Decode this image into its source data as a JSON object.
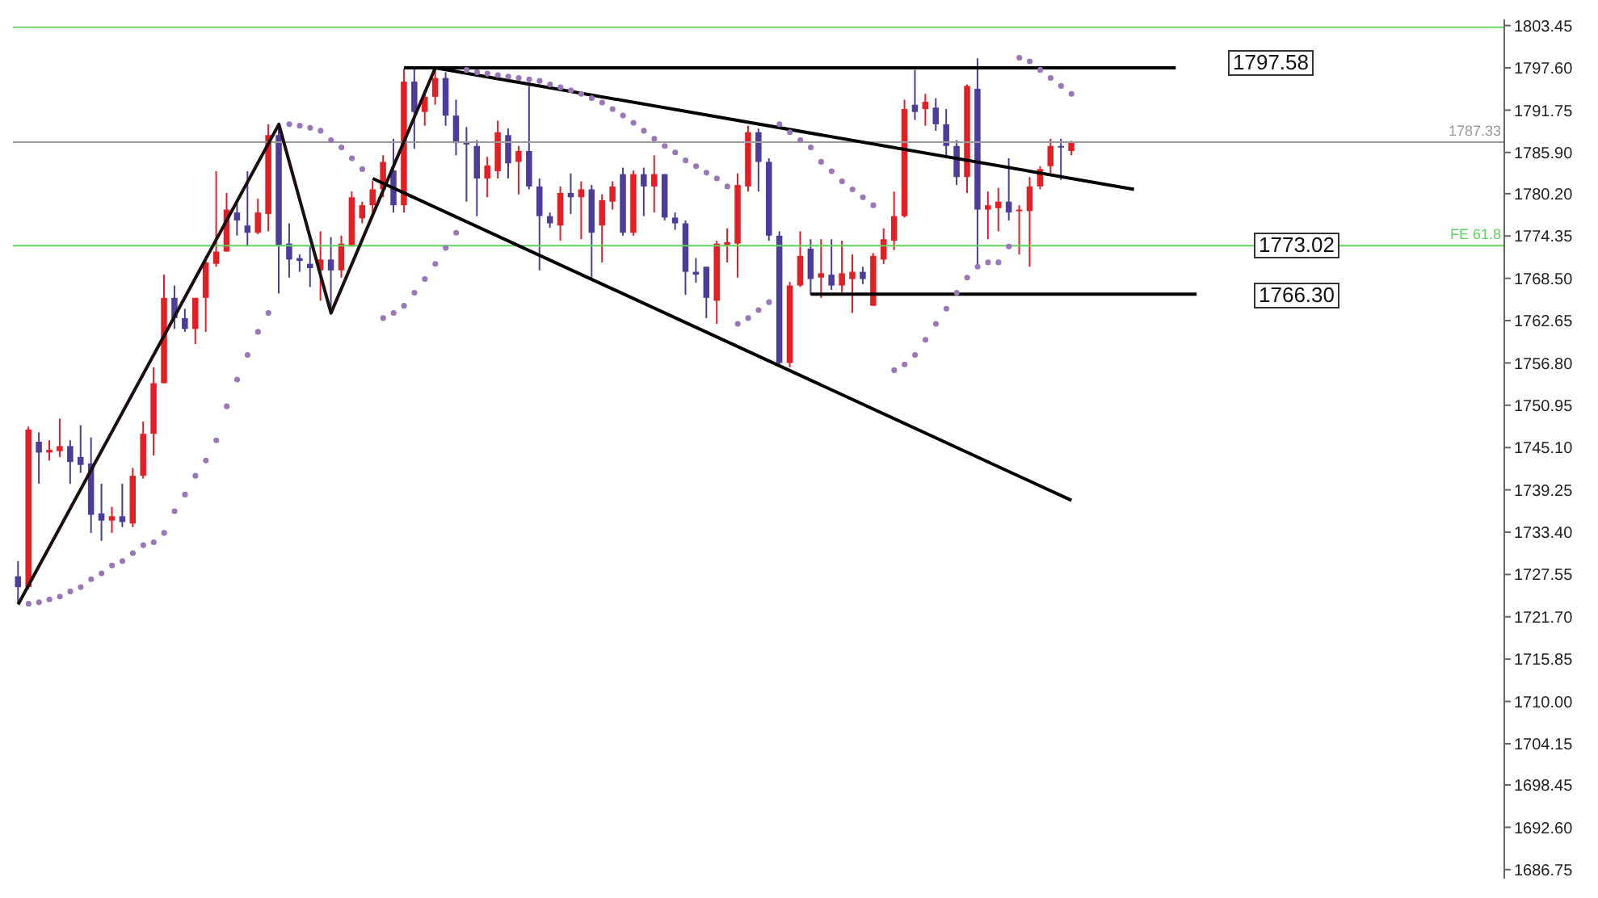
{
  "chart_data": {
    "type": "candlestick",
    "categories": [
      null,
      null,
      null,
      null,
      null,
      null,
      null,
      null,
      null,
      null,
      null,
      null,
      null,
      null,
      null,
      null,
      null,
      null,
      null,
      null,
      null,
      null,
      null,
      null,
      null,
      null,
      null,
      null,
      null,
      null,
      null,
      null,
      null,
      null,
      null,
      null,
      null,
      null,
      null,
      null,
      null,
      null,
      null,
      null,
      null,
      null,
      null,
      null,
      null,
      null,
      null,
      null,
      null,
      null,
      null,
      null,
      null,
      null,
      null,
      null,
      null,
      null,
      null,
      null,
      null,
      null,
      null,
      null,
      null,
      null,
      null,
      null,
      null,
      null,
      null,
      null,
      null,
      null,
      null,
      null,
      null,
      null,
      null,
      null,
      null,
      null,
      null,
      null,
      null,
      null,
      null,
      null,
      null,
      null,
      null,
      null,
      null,
      null,
      null,
      null,
      null,
      null,
      null,
      null,
      null,
      null,
      null,
      null,
      null,
      null,
      null,
      null,
      null,
      null,
      null,
      null,
      null,
      null,
      null,
      null,
      null,
      null,
      null,
      null,
      null,
      null,
      null,
      null,
      null,
      null,
      null,
      null,
      null,
      null,
      null,
      null,
      null,
      null,
      null,
      null,
      null,
      null,
      null
    ],
    "ohlc": [
      [
        1727.3,
        1729.4,
        1723.6,
        1725.8
      ],
      [
        1725.8,
        1748.0,
        1725.5,
        1747.6
      ],
      [
        1745.9,
        1747.2,
        1740.1,
        1744.4
      ],
      [
        1744.4,
        1746.1,
        1743.3,
        1744.8
      ],
      [
        1744.6,
        1749.1,
        1743.8,
        1745.3
      ],
      [
        1745.3,
        1746.1,
        1740.1,
        1743.1
      ],
      [
        1743.8,
        1748.2,
        1741.6,
        1742.7
      ],
      [
        1742.9,
        1746.5,
        1733.3,
        1735.8
      ],
      [
        1736.0,
        1740.1,
        1732.2,
        1735.0
      ],
      [
        1735.0,
        1736.9,
        1733.3,
        1735.6
      ],
      [
        1735.6,
        1740.1,
        1734.1,
        1734.8
      ],
      [
        1734.6,
        1742.3,
        1734.1,
        1741.2
      ],
      [
        1741.2,
        1748.7,
        1740.8,
        1747.0
      ],
      [
        1747.0,
        1756.2,
        1744.0,
        1754.0
      ],
      [
        1754.0,
        1769.0,
        1754.0,
        1765.8
      ],
      [
        1765.8,
        1767.5,
        1761.5,
        1763.0
      ],
      [
        1763.0,
        1764.3,
        1761.1,
        1761.5
      ],
      [
        1761.5,
        1765.8,
        1759.4,
        1765.8
      ],
      [
        1765.8,
        1771.6,
        1761.1,
        1770.7
      ],
      [
        1770.5,
        1783.3,
        1770.1,
        1772.2
      ],
      [
        1772.2,
        1780.3,
        1772.2,
        1778.0
      ],
      [
        1777.6,
        1779.1,
        1774.4,
        1776.5
      ],
      [
        1775.8,
        1783.3,
        1772.9,
        1774.8
      ],
      [
        1774.8,
        1779.5,
        1774.6,
        1777.6
      ],
      [
        1777.4,
        1789.8,
        1775.0,
        1788.3
      ],
      [
        1788.3,
        1789.8,
        1766.4,
        1773.1
      ],
      [
        1773.3,
        1776.1,
        1768.6,
        1771.1
      ],
      [
        1771.3,
        1771.8,
        1769.4,
        1770.9
      ],
      [
        1770.5,
        1772.9,
        1767.3,
        1769.9
      ],
      [
        1769.6,
        1775.0,
        1765.4,
        1771.1
      ],
      [
        1771.1,
        1774.2,
        1763.7,
        1769.6
      ],
      [
        1769.6,
        1774.4,
        1768.6,
        1773.3
      ],
      [
        1772.9,
        1780.5,
        1772.9,
        1779.7
      ],
      [
        1776.8,
        1779.1,
        1776.1,
        1778.6
      ],
      [
        1778.6,
        1782.0,
        1777.6,
        1780.8
      ],
      [
        1780.8,
        1785.5,
        1779.7,
        1784.6
      ],
      [
        1783.4,
        1787.8,
        1777.6,
        1778.6
      ],
      [
        1778.6,
        1797.5,
        1777.6,
        1795.7
      ],
      [
        1795.7,
        1797.5,
        1786.4,
        1791.5
      ],
      [
        1791.5,
        1794.5,
        1789.6,
        1793.6
      ],
      [
        1793.6,
        1797.6,
        1792.5,
        1796.2
      ],
      [
        1796.2,
        1797.0,
        1789.6,
        1791.0
      ],
      [
        1791.0,
        1793.2,
        1785.5,
        1787.2
      ],
      [
        1787.4,
        1789.4,
        1779.1,
        1787.0
      ],
      [
        1786.8,
        1787.6,
        1777.1,
        1782.3
      ],
      [
        1782.3,
        1785.3,
        1779.7,
        1784.1
      ],
      [
        1783.3,
        1790.3,
        1782.3,
        1788.7
      ],
      [
        1788.3,
        1789.2,
        1782.3,
        1784.4
      ],
      [
        1784.6,
        1786.8,
        1780.1,
        1786.1
      ],
      [
        1786.1,
        1795.1,
        1780.8,
        1781.2
      ],
      [
        1781.2,
        1782.3,
        1769.6,
        1777.1
      ],
      [
        1777.1,
        1777.6,
        1775.5,
        1776.1
      ],
      [
        1775.8,
        1781.2,
        1773.7,
        1780.3
      ],
      [
        1780.3,
        1783.0,
        1777.4,
        1779.7
      ],
      [
        1779.7,
        1781.9,
        1773.9,
        1780.8
      ],
      [
        1780.8,
        1781.4,
        1768.6,
        1774.8
      ],
      [
        1775.8,
        1780.1,
        1770.7,
        1779.3
      ],
      [
        1779.1,
        1781.9,
        1778.0,
        1781.2
      ],
      [
        1782.9,
        1783.8,
        1774.4,
        1774.8
      ],
      [
        1774.8,
        1783.4,
        1774.4,
        1782.9
      ],
      [
        1782.9,
        1783.8,
        1777.1,
        1781.2
      ],
      [
        1781.2,
        1785.5,
        1777.6,
        1782.9
      ],
      [
        1782.9,
        1782.9,
        1776.5,
        1776.9
      ],
      [
        1776.9,
        1777.6,
        1775.2,
        1776.1
      ],
      [
        1776.1,
        1776.5,
        1766.2,
        1769.4
      ],
      [
        1769.4,
        1771.3,
        1767.9,
        1769.0
      ],
      [
        1770.1,
        1770.1,
        1763.0,
        1765.8
      ],
      [
        1765.4,
        1773.7,
        1762.2,
        1773.3
      ],
      [
        1773.1,
        1775.4,
        1770.7,
        1773.5
      ],
      [
        1773.3,
        1783.0,
        1768.6,
        1781.4
      ],
      [
        1781.2,
        1789.6,
        1780.5,
        1788.7
      ],
      [
        1788.7,
        1789.2,
        1780.5,
        1784.6
      ],
      [
        1784.6,
        1785.1,
        1773.7,
        1774.4
      ],
      [
        1774.4,
        1775.0,
        1756.3,
        1756.8
      ],
      [
        1756.8,
        1768.0,
        1756.2,
        1767.5
      ],
      [
        1767.5,
        1775.0,
        1767.3,
        1771.6
      ],
      [
        1772.6,
        1773.9,
        1766.2,
        1768.4
      ],
      [
        1768.6,
        1773.9,
        1765.8,
        1769.2
      ],
      [
        1769.0,
        1773.9,
        1766.9,
        1767.5
      ],
      [
        1767.5,
        1773.7,
        1766.6,
        1769.2
      ],
      [
        1768.4,
        1771.8,
        1763.7,
        1769.4
      ],
      [
        1769.4,
        1770.1,
        1767.7,
        1768.4
      ],
      [
        1764.7,
        1772.0,
        1764.7,
        1771.6
      ],
      [
        1771.1,
        1775.4,
        1770.5,
        1773.9
      ],
      [
        1773.7,
        1780.5,
        1772.4,
        1777.1
      ],
      [
        1777.1,
        1793.2,
        1776.9,
        1791.9
      ],
      [
        1792.5,
        1797.3,
        1790.4,
        1791.5
      ],
      [
        1791.9,
        1794.0,
        1789.6,
        1792.9
      ],
      [
        1792.1,
        1793.4,
        1788.9,
        1789.8
      ],
      [
        1789.8,
        1791.9,
        1785.1,
        1786.8
      ],
      [
        1786.8,
        1787.6,
        1781.4,
        1782.5
      ],
      [
        1782.5,
        1795.3,
        1780.3,
        1795.1
      ],
      [
        1794.7,
        1798.9,
        1770.1,
        1778.0
      ],
      [
        1778.0,
        1780.5,
        1773.9,
        1778.6
      ],
      [
        1778.2,
        1781.0,
        1775.0,
        1779.1
      ],
      [
        1779.1,
        1785.1,
        1776.5,
        1777.6
      ],
      [
        1777.8,
        1778.6,
        1771.8,
        1778.0
      ],
      [
        1777.8,
        1782.5,
        1770.1,
        1781.2
      ],
      [
        1781.2,
        1784.0,
        1780.8,
        1783.6
      ],
      [
        1784.0,
        1787.8,
        1783.0,
        1786.8
      ],
      [
        1786.8,
        1787.8,
        1782.1,
        1786.6
      ],
      [
        1786.1,
        1787.5,
        1785.5,
        1787.33
      ],
      null,
      null,
      null,
      null,
      null,
      null,
      null,
      null,
      null,
      null,
      null,
      null,
      null,
      null,
      null,
      null,
      null,
      null,
      null,
      null,
      null,
      null,
      null,
      null,
      null,
      null,
      null,
      null,
      null,
      null,
      null,
      null,
      null,
      null,
      null,
      null,
      null,
      null,
      null,
      null,
      null
    ],
    "colors": [
      "#4b3d99",
      "#e31e24",
      "#4b3d99",
      "#e31e24",
      "#e31e24",
      "#4b3d99",
      "#4b3d99",
      "#4b3d99",
      "#4b3d99",
      "#e31e24",
      "#4b3d99",
      "#e31e24",
      "#e31e24",
      "#e31e24",
      "#e31e24",
      "#4b3d99",
      "#4b3d99",
      "#e31e24",
      "#e31e24",
      "#e31e24",
      "#e31e24",
      "#4b3d99",
      "#4b3d99",
      "#e31e24",
      "#e31e24",
      "#4b3d99",
      "#4b3d99",
      "#4b3d99",
      "#4b3d99",
      "#e31e24",
      "#4b3d99",
      "#e31e24",
      "#e31e24",
      "#e31e24",
      "#e31e24",
      "#e31e24",
      "#4b3d99",
      "#e31e24",
      "#4b3d99",
      "#e31e24",
      "#e31e24",
      "#4b3d99",
      "#4b3d99",
      "#4b3d99",
      "#4b3d99",
      "#e31e24",
      "#e31e24",
      "#4b3d99",
      "#e31e24",
      "#4b3d99",
      "#4b3d99",
      "#4b3d99",
      "#e31e24",
      "#4b3d99",
      "#e31e24",
      "#4b3d99",
      "#e31e24",
      "#e31e24",
      "#4b3d99",
      "#e31e24",
      "#4b3d99",
      "#e31e24",
      "#4b3d99",
      "#4b3d99",
      "#4b3d99",
      "#4b3d99",
      "#4b3d99",
      "#e31e24",
      "#e31e24",
      "#e31e24",
      "#e31e24",
      "#4b3d99",
      "#4b3d99",
      "#4b3d99",
      "#e31e24",
      "#e31e24",
      "#4b3d99",
      "#e31e24",
      "#4b3d99",
      "#e31e24",
      "#e31e24",
      "#4b3d99",
      "#e31e24",
      "#e31e24",
      "#e31e24",
      "#e31e24",
      "#4b3d99",
      "#e31e24",
      "#4b3d99",
      "#4b3d99",
      "#4b3d99",
      "#e31e24",
      "#4b3d99",
      "#e31e24",
      "#e31e24",
      "#4b3d99",
      "#e31e24",
      "#e31e24",
      "#e31e24",
      "#e31e24",
      "#4b3d99",
      "#e31e24",
      null,
      null,
      null,
      null,
      null,
      null,
      null,
      null,
      null,
      null,
      null,
      null,
      null,
      null,
      null,
      null,
      null,
      null,
      null,
      null,
      null,
      null,
      null,
      null,
      null,
      null,
      null,
      null,
      null,
      null,
      null,
      null,
      null,
      null,
      null,
      null,
      null,
      null,
      null,
      null,
      null
    ],
    "series": [
      {
        "type": "line",
        "color": "#1a1010",
        "values": [
          1723.4,
          null,
          null,
          null,
          null,
          null,
          null,
          null,
          null,
          null,
          null,
          null,
          null,
          null,
          null,
          null,
          null,
          null,
          null,
          null,
          null,
          null,
          null,
          null,
          null,
          1789.8,
          null,
          null,
          null,
          null,
          1763.7,
          null,
          null,
          null,
          null,
          null,
          null,
          null,
          null,
          null,
          1797.6,
          null,
          null,
          null,
          null,
          null,
          null,
          null,
          null,
          null,
          null,
          null,
          null,
          null,
          null,
          null,
          null,
          null,
          null,
          null,
          null,
          null,
          null,
          null,
          null,
          null,
          null,
          null,
          null,
          null,
          null,
          null,
          null,
          null,
          null,
          null,
          null,
          null,
          null,
          null,
          null,
          null,
          null,
          null,
          null,
          null,
          null,
          null,
          null,
          null,
          null,
          null,
          null,
          null,
          null,
          null,
          null,
          null,
          null,
          null,
          null,
          null,
          null,
          null,
          null,
          null,
          null,
          null,
          null,
          null,
          null,
          null,
          null,
          null,
          null,
          null,
          null,
          null,
          null,
          null,
          null,
          null,
          null,
          null,
          null,
          null,
          null,
          null,
          null,
          null,
          null,
          null,
          null,
          null,
          null,
          null,
          null,
          null,
          null,
          null,
          null,
          null,
          null
        ]
      },
      {
        "type": "line",
        "color": "#000000",
        "values": [
          null,
          null,
          null,
          null,
          null,
          null,
          null,
          null,
          null,
          null,
          null,
          null,
          null,
          null,
          null,
          null,
          null,
          null,
          null,
          null,
          null,
          null,
          null,
          null,
          null,
          null,
          null,
          null,
          null,
          null,
          null,
          null,
          null,
          null,
          null,
          null,
          null,
          null,
          null,
          null,
          1797.6,
          null,
          null,
          null,
          null,
          null,
          null,
          null,
          null,
          null,
          null,
          null,
          null,
          null,
          null,
          null,
          null,
          null,
          null,
          null,
          null,
          null,
          null,
          null,
          null,
          null,
          null,
          null,
          null,
          null,
          null,
          null,
          null,
          null,
          null,
          null,
          null,
          null,
          null,
          null,
          null,
          null,
          null,
          null,
          null,
          null,
          null,
          null,
          null,
          null,
          null,
          null,
          null,
          null,
          null,
          null,
          null,
          null,
          null,
          null,
          null,
          null,
          null,
          null,
          null,
          null,
          null,
          1780.8,
          null,
          null,
          null,
          null,
          null,
          null,
          null,
          null,
          null,
          null,
          null,
          null,
          null,
          null,
          null,
          null,
          null,
          null,
          null,
          null,
          null,
          null,
          null,
          null,
          null,
          null,
          null,
          null,
          null,
          null,
          null,
          null,
          null,
          null,
          null
        ]
      },
      {
        "type": "line",
        "color": "#000000",
        "values": [
          null,
          null,
          null,
          null,
          null,
          null,
          null,
          null,
          null,
          null,
          null,
          null,
          null,
          null,
          null,
          null,
          null,
          null,
          null,
          null,
          null,
          null,
          null,
          null,
          null,
          null,
          null,
          null,
          null,
          null,
          null,
          null,
          null,
          null,
          1782.3,
          null,
          null,
          null,
          null,
          null,
          null,
          null,
          null,
          null,
          null,
          null,
          null,
          null,
          null,
          null,
          null,
          null,
          null,
          null,
          null,
          null,
          null,
          null,
          null,
          null,
          null,
          null,
          null,
          null,
          null,
          null,
          null,
          null,
          null,
          null,
          null,
          null,
          null,
          null,
          null,
          null,
          null,
          null,
          null,
          null,
          null,
          null,
          null,
          null,
          null,
          null,
          null,
          null,
          null,
          null,
          null,
          null,
          null,
          null,
          null,
          null,
          null,
          null,
          null,
          null,
          null,
          1737.8,
          null,
          null,
          null,
          null,
          null,
          null,
          null,
          null,
          null,
          null,
          null,
          null,
          null,
          null,
          null,
          null,
          null,
          null,
          null,
          null,
          null,
          null,
          null,
          null,
          null,
          null,
          null,
          null,
          null,
          null,
          null,
          null,
          null,
          null,
          null,
          null,
          null,
          null,
          null,
          null,
          null
        ]
      },
      {
        "type": "line",
        "color": "#000000",
        "values": [
          null,
          null,
          null,
          null,
          null,
          null,
          null,
          null,
          null,
          null,
          null,
          null,
          null,
          null,
          null,
          null,
          null,
          null,
          null,
          null,
          null,
          null,
          null,
          null,
          null,
          null,
          null,
          null,
          null,
          null,
          null,
          null,
          null,
          null,
          null,
          null,
          null,
          1797.6,
          null,
          null,
          null,
          null,
          null,
          null,
          null,
          null,
          null,
          null,
          null,
          null,
          null,
          null,
          null,
          null,
          null,
          null,
          null,
          null,
          null,
          null,
          null,
          null,
          null,
          null,
          null,
          null,
          null,
          null,
          null,
          null,
          null,
          null,
          null,
          null,
          null,
          null,
          null,
          null,
          null,
          null,
          null,
          null,
          null,
          null,
          null,
          null,
          null,
          null,
          null,
          null,
          null,
          null,
          null,
          null,
          null,
          null,
          null,
          null,
          null,
          null,
          null,
          null,
          null,
          null,
          null,
          null,
          null,
          null,
          null,
          null,
          null,
          1797.6,
          null,
          null,
          null,
          null,
          null,
          null,
          null,
          null,
          null,
          null,
          null,
          null,
          null,
          null,
          null,
          null,
          null,
          null,
          null,
          null,
          null,
          null,
          null,
          null,
          null,
          null,
          null,
          null,
          null,
          null,
          null
        ]
      },
      {
        "type": "line",
        "color": "#000000",
        "values": [
          null,
          null,
          null,
          null,
          null,
          null,
          null,
          null,
          null,
          null,
          null,
          null,
          null,
          null,
          null,
          null,
          null,
          null,
          null,
          null,
          null,
          null,
          null,
          null,
          null,
          null,
          null,
          null,
          null,
          null,
          null,
          null,
          null,
          null,
          null,
          null,
          null,
          null,
          null,
          null,
          null,
          null,
          null,
          null,
          null,
          null,
          null,
          null,
          null,
          null,
          null,
          null,
          null,
          null,
          null,
          null,
          null,
          null,
          null,
          null,
          null,
          null,
          null,
          null,
          null,
          null,
          null,
          null,
          null,
          null,
          null,
          null,
          null,
          null,
          null,
          null,
          1766.3,
          null,
          null,
          null,
          null,
          null,
          null,
          null,
          null,
          null,
          null,
          null,
          null,
          null,
          null,
          null,
          null,
          null,
          null,
          null,
          null,
          null,
          null,
          null,
          null,
          null,
          null,
          null,
          null,
          null,
          null,
          null,
          null,
          null,
          null,
          null,
          null,
          1766.3,
          null,
          null,
          null,
          null,
          null,
          null,
          null,
          null,
          null,
          null,
          null,
          null,
          null,
          null,
          null,
          null,
          null,
          null,
          null,
          null,
          null,
          null,
          null,
          null,
          null,
          null,
          null,
          null,
          null
        ]
      },
      {
        "type": "scatter",
        "color": "#9a78b8",
        "marker": "circle",
        "values": [
          null,
          1723.5,
          1723.7,
          1724.1,
          1724.5,
          1725.2,
          1725.8,
          1726.9,
          1727.7,
          1728.8,
          1729.4,
          1730.5,
          1731.6,
          1732.0,
          1733.3,
          1736.3,
          1738.6,
          1741.2,
          1743.3,
          1746.1,
          1750.8,
          1754.5,
          1757.9,
          1761.1,
          1763.7,
          null,
          1789.8,
          1789.6,
          1789.3,
          1788.9,
          1787.6,
          1786.6,
          1785.1,
          1783.6,
          null,
          1763.0,
          1763.7,
          1764.7,
          1766.5,
          1768.4,
          1770.5,
          1772.7,
          1774.8,
          1797.3,
          1797.0,
          1796.8,
          1796.6,
          1796.4,
          1796.2,
          1796.0,
          1795.8,
          1795.3,
          1794.9,
          1794.5,
          1794.0,
          1793.4,
          1792.8,
          1791.9,
          1791.0,
          1790.0,
          1788.9,
          1787.8,
          1786.8,
          1785.9,
          1784.8,
          1784.0,
          1783.1,
          1782.3,
          1781.2,
          1762.2,
          1763.0,
          1764.1,
          1765.2,
          1789.8,
          1788.7,
          1787.6,
          1786.6,
          1784.6,
          1783.3,
          1781.9,
          1780.8,
          1779.7,
          1778.6,
          null,
          1755.8,
          1756.6,
          1757.9,
          1760.0,
          1762.2,
          1764.3,
          1766.5,
          1768.6,
          1770.1,
          1770.7,
          1770.7,
          1772.9,
          1799.0,
          1798.5,
          1797.3,
          1796.2,
          1795.1,
          1794.0,
          null,
          null,
          null,
          null,
          null,
          null,
          null,
          null,
          null,
          null,
          null,
          null,
          null,
          null,
          null,
          null,
          null,
          null,
          null,
          null,
          null,
          null,
          null,
          null,
          null,
          null,
          null,
          null,
          null,
          null,
          null,
          null,
          null,
          null,
          null,
          null,
          null,
          null,
          null,
          null,
          null
        ]
      }
    ],
    "ylim": [
      1685.5,
      1804.3
    ],
    "yticks": [
      {
        "value": 1803.45,
        "label": "1803.45"
      },
      {
        "value": 1797.6,
        "label": "1797.60"
      },
      {
        "value": 1791.75,
        "label": "1791.75"
      },
      {
        "value": 1785.9,
        "label": "1785.90"
      },
      {
        "value": 1780.2,
        "label": "1780.20"
      },
      {
        "value": 1774.35,
        "label": "1774.35"
      },
      {
        "value": 1768.5,
        "label": "1768.50"
      },
      {
        "value": 1762.65,
        "label": "1762.65"
      },
      {
        "value": 1756.8,
        "label": "1756.80"
      },
      {
        "value": 1750.95,
        "label": "1750.95"
      },
      {
        "value": 1745.1,
        "label": "1745.10"
      },
      {
        "value": 1739.25,
        "label": "1739.25"
      },
      {
        "value": 1733.4,
        "label": "1733.40"
      },
      {
        "value": 1727.55,
        "label": "1727.55"
      },
      {
        "value": 1721.7,
        "label": "1721.70"
      },
      {
        "value": 1715.85,
        "label": "1715.85"
      },
      {
        "value": 1710.0,
        "label": "1710.00"
      },
      {
        "value": 1704.15,
        "label": "1704.15"
      },
      {
        "value": 1698.45,
        "label": "1698.45"
      },
      {
        "value": 1692.6,
        "label": "1692.60"
      },
      {
        "value": 1686.75,
        "label": "1686.75"
      }
    ],
    "tick_labels": "y",
    "ref_lines": [
      {
        "axis": "y",
        "value": 1803.2,
        "color": "#6fd46f"
      },
      {
        "axis": "y",
        "value": 1787.33,
        "label": "1787.33",
        "color": "#9a9a9a"
      },
      {
        "axis": "y",
        "value": 1773.02,
        "label": "FE 61.8",
        "color": "#5fd35f"
      }
    ],
    "annotations": [
      "1797.58",
      {
        "text": "1773.02",
        "y": 1773.02
      },
      "1766.30"
    ]
  }
}
